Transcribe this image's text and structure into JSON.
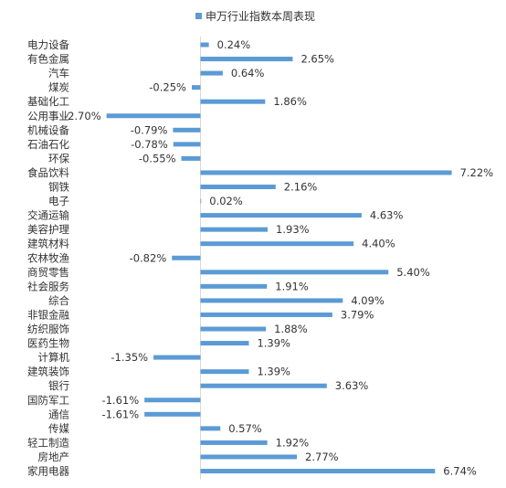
{
  "chart_data": {
    "type": "bar",
    "orientation": "horizontal",
    "title": "",
    "legend": {
      "position": "top",
      "entries": [
        "申万行业指数本周表现"
      ]
    },
    "series": [
      {
        "name": "申万行业指数本周表现",
        "color": "#5B9BD5",
        "values": [
          0.24,
          2.65,
          0.64,
          -0.25,
          1.86,
          -2.7,
          -0.79,
          -0.78,
          -0.55,
          7.22,
          2.16,
          0.02,
          4.63,
          1.93,
          4.4,
          -0.82,
          5.4,
          1.91,
          4.09,
          3.79,
          1.88,
          1.39,
          -1.35,
          1.39,
          3.63,
          -1.61,
          -1.61,
          0.57,
          1.92,
          2.77,
          6.74
        ]
      }
    ],
    "categories": [
      "电力设备",
      "有色金属",
      "汽车",
      "煤炭",
      "基础化工",
      "公用事业",
      "机械设备",
      "石油石化",
      "环保",
      "食品饮料",
      "钢铁",
      "电子",
      "交通运输",
      "美容护理",
      "建筑材料",
      "农林牧渔",
      "商贸零售",
      "社会服务",
      "综合",
      "非银金融",
      "纺织服饰",
      "医药生物",
      "计算机",
      "建筑装饰",
      "银行",
      "国防军工",
      "通信",
      "传媒",
      "轻工制造",
      "房地产",
      "家用电器"
    ],
    "data_labels": [
      "0.24%",
      "2.65%",
      "0.64%",
      "-0.25%",
      "1.86%",
      "-2.70%",
      "-0.79%",
      "-0.78%",
      "-0.55%",
      "7.22%",
      "2.16%",
      "0.02%",
      "4.63%",
      "1.93%",
      "4.40%",
      "-0.82%",
      "5.40%",
      "1.91%",
      "4.09%",
      "3.79%",
      "1.88%",
      "1.39%",
      "-1.35%",
      "1.39%",
      "3.63%",
      "-1.61%",
      "-1.61%",
      "0.57%",
      "1.92%",
      "2.77%",
      "6.74%"
    ],
    "xlim": [
      -2.7,
      7.22
    ],
    "grid": false
  }
}
